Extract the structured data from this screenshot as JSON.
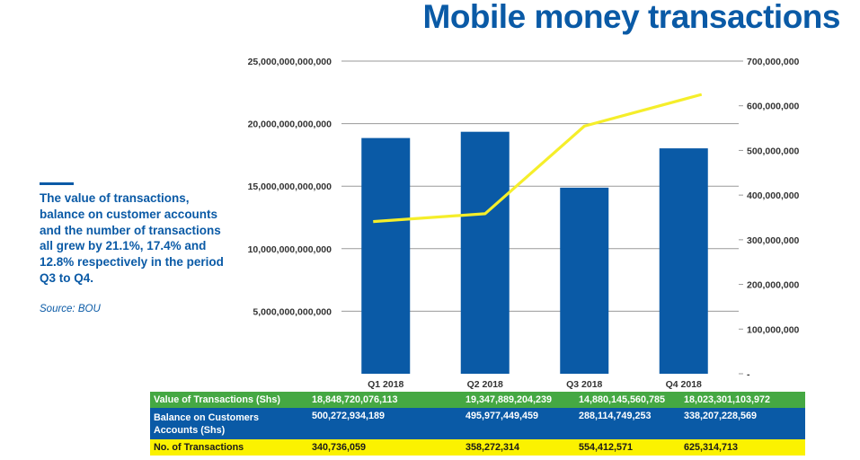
{
  "title": "Mobile money transactions",
  "note": {
    "text": "The value of transactions, balance on customer accounts and the number of transactions all grew by 21.1%, 17.4% and 12.8% respectively in the period Q3 to Q4.",
    "source": "Source: BOU"
  },
  "colors": {
    "bar": "#0a5aa6",
    "line": "#f5ee2a",
    "green": "#45a843",
    "blue": "#0a5aa6",
    "yellow": "#fbf200",
    "title": "#0a5aa6"
  },
  "chart_data": {
    "type": "bar",
    "title": "Mobile money transactions",
    "categories": [
      "Q1 2018",
      "Q2 2018",
      "Q3 2018",
      "Q4 2018"
    ],
    "series": [
      {
        "name": "Value of Transactions (Shs)",
        "type": "bar",
        "axis": "left",
        "values": [
          18848720076113,
          19347889204239,
          14880145560785,
          18023301103972
        ]
      },
      {
        "name": "No. of Transactions",
        "type": "line",
        "axis": "right",
        "values": [
          340736059,
          358272314,
          554412571,
          625314713
        ]
      }
    ],
    "y_left": {
      "lim": [
        0,
        25000000000000
      ],
      "ticks": [
        "5,000,000,000,000",
        "10,000,000,000,000",
        "15,000,000,000,000",
        "20,000,000,000,000",
        "25,000,000,000,000"
      ],
      "tick_values": [
        5000000000000,
        10000000000000,
        15000000000000,
        20000000000000,
        25000000000000
      ]
    },
    "y_right": {
      "lim": [
        0,
        700000000
      ],
      "ticks": [
        "-",
        "100,000,000",
        "200,000,000",
        "300,000,000",
        "400,000,000",
        "500,000,000",
        "600,000,000",
        "700,000,000"
      ],
      "tick_values": [
        0,
        100000000,
        200000000,
        300000000,
        400000000,
        500000000,
        600000000,
        700000000
      ]
    },
    "grid": true,
    "legend": "none"
  },
  "table": {
    "rows": [
      {
        "label": "Value of Transactions (Shs)",
        "cells": [
          "18,848,720,076,113",
          "19,347,889,204,239",
          "14,880,145,560,785",
          "18,023,301,103,972"
        ]
      },
      {
        "label": "Balance on Customers Accounts (Shs)",
        "cells": [
          "500,272,934,189",
          "495,977,449,459",
          "288,114,749,253",
          "338,207,228,569"
        ]
      },
      {
        "label": "No. of Transactions",
        "cells": [
          "340,736,059",
          "358,272,314",
          "554,412,571",
          "625,314,713"
        ]
      }
    ]
  }
}
